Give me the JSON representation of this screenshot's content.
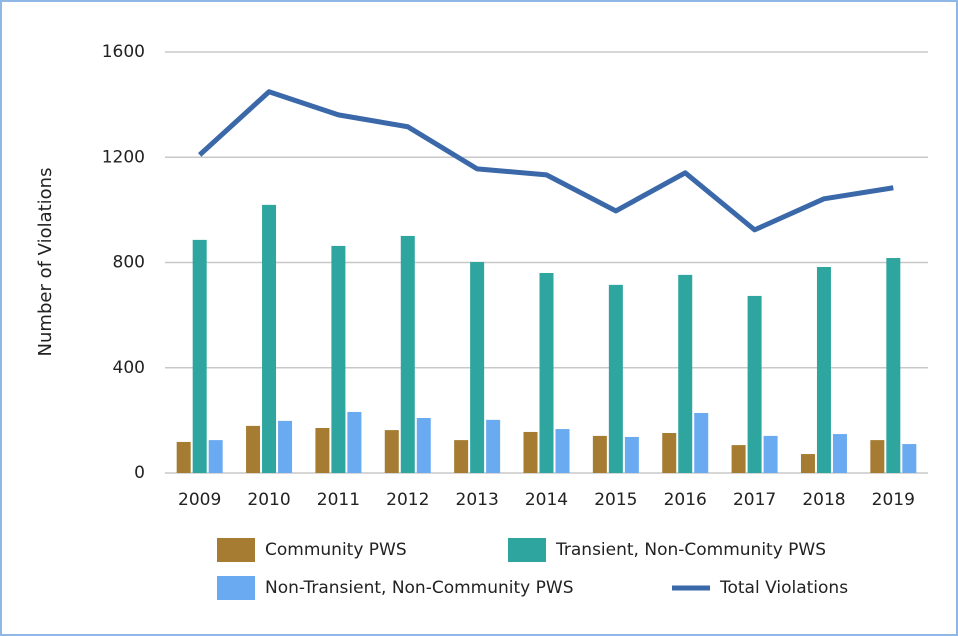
{
  "chart_data": {
    "type": "bar_line",
    "y_label": "Number of Violations",
    "categories": [
      "2009",
      "2010",
      "2011",
      "2012",
      "2013",
      "2014",
      "2015",
      "2016",
      "2017",
      "2018",
      "2019"
    ],
    "series": [
      {
        "name": "Community PWS",
        "type": "bar",
        "color": "#a57c32",
        "values": [
          118,
          179,
          171,
          163,
          125,
          156,
          141,
          152,
          106,
          72,
          125
        ]
      },
      {
        "name": "Transient, Non-Community PWS",
        "type": "bar",
        "color": "#2ea59e",
        "values": [
          886,
          1019,
          863,
          901,
          802,
          760,
          715,
          753,
          673,
          783,
          817
        ]
      },
      {
        "name": "Non-Transient, Non-Community PWS",
        "type": "bar",
        "color": "#6aaaf0",
        "values": [
          125,
          198,
          232,
          209,
          202,
          167,
          137,
          228,
          141,
          148,
          110
        ]
      },
      {
        "name": "Total Violations",
        "type": "line",
        "color": "#3a68a8",
        "values": [
          1209,
          1449,
          1361,
          1316,
          1156,
          1133,
          996,
          1141,
          924,
          1042,
          1084
        ]
      }
    ],
    "ylim": [
      0,
      1600
    ],
    "yticks": [
      0,
      400,
      800,
      1200,
      1600
    ],
    "grid": true
  }
}
